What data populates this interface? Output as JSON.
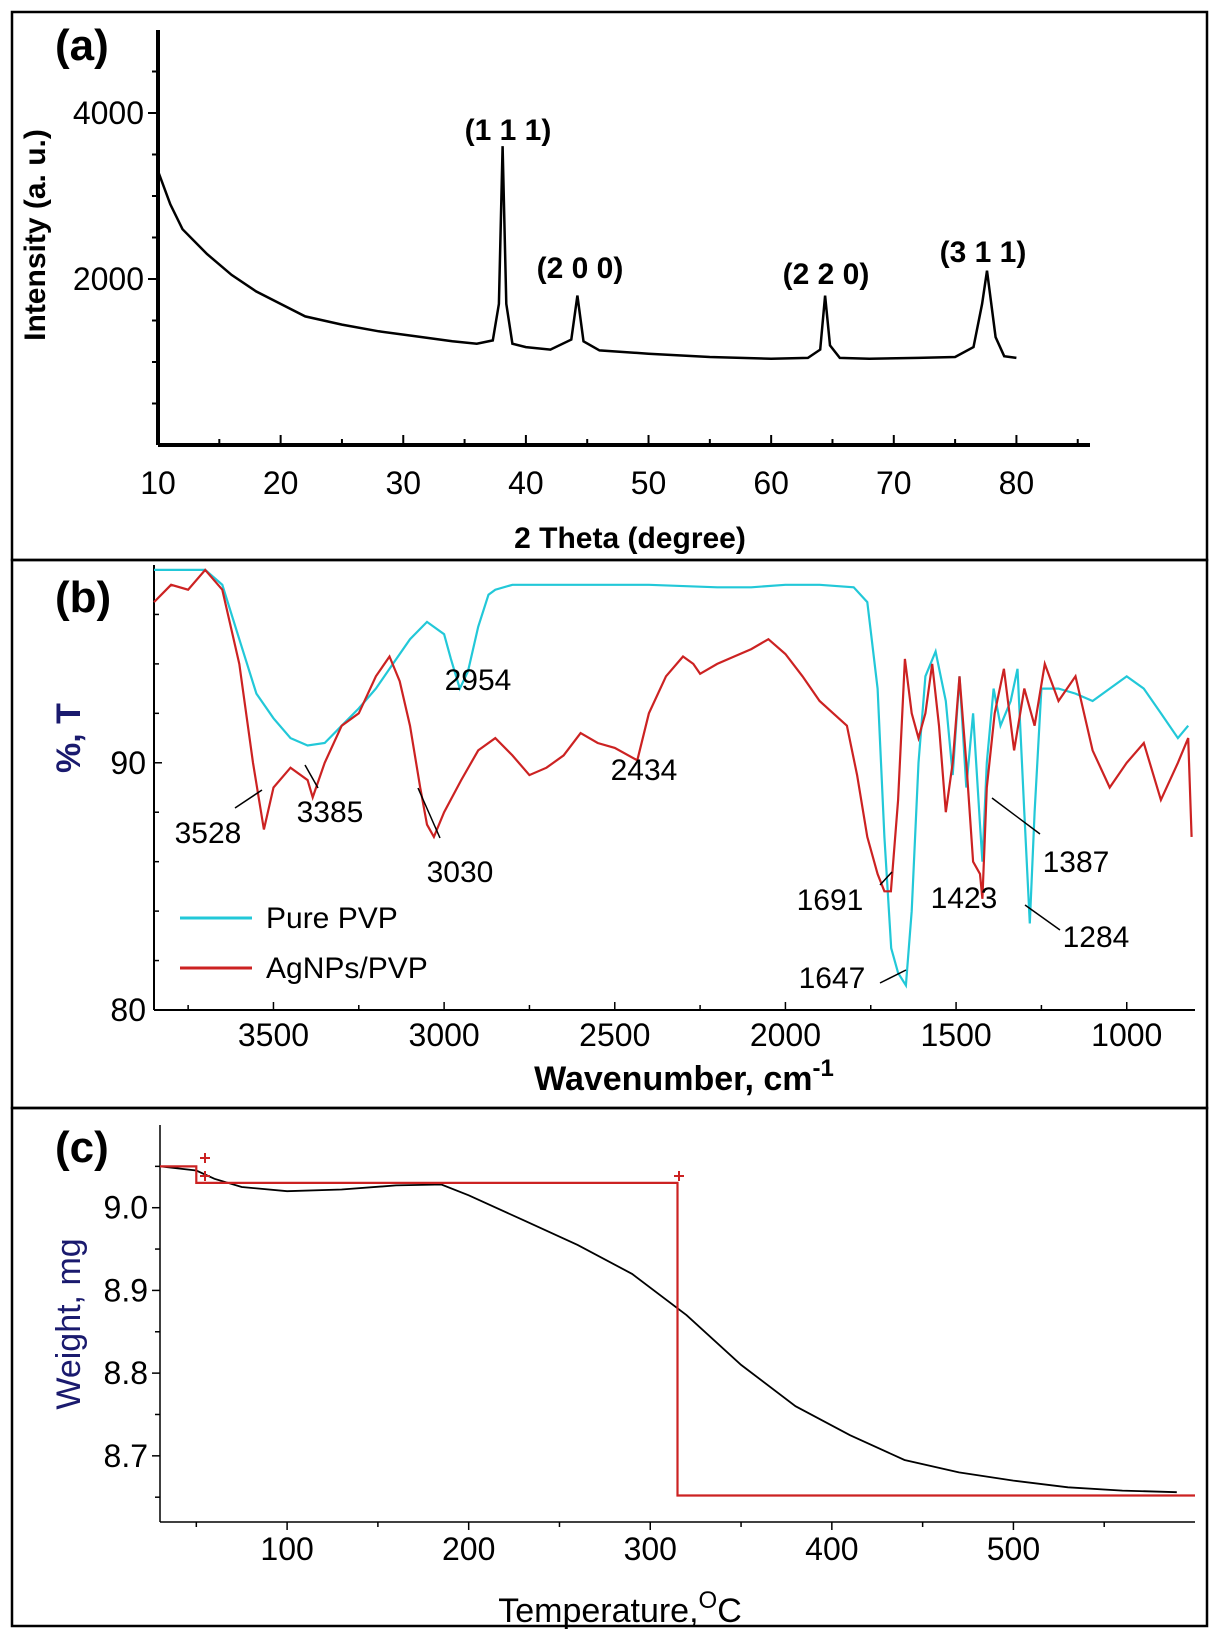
{
  "panels": {
    "a": {
      "label": "(a)"
    },
    "b": {
      "label": "(b)"
    },
    "c": {
      "label": "(c)"
    }
  },
  "chart_data": [
    {
      "panel": "a",
      "type": "line",
      "title": "",
      "xlabel": "2 Theta (degree)",
      "ylabel": "Intensity (a. u.)",
      "xlim": [
        10,
        86
      ],
      "ylim": [
        0,
        5000
      ],
      "x_ticks": [
        "10",
        "20",
        "30",
        "40",
        "50",
        "60",
        "70",
        "80"
      ],
      "y_ticks": [
        "2000",
        "4000"
      ],
      "series": [
        {
          "color": "#000000",
          "x": [
            10,
            11,
            12,
            14,
            16,
            18,
            20,
            22,
            25,
            28,
            31,
            34,
            36,
            37.3,
            37.8,
            38.1,
            38.4,
            38.9,
            40,
            42,
            43.7,
            44.2,
            44.7,
            46,
            50,
            55,
            60,
            63,
            64,
            64.4,
            64.8,
            65.6,
            68,
            72,
            75,
            76.5,
            77.2,
            77.6,
            78.3,
            79,
            80
          ],
          "values": [
            3300,
            2900,
            2600,
            2300,
            2050,
            1850,
            1700,
            1550,
            1450,
            1370,
            1310,
            1250,
            1220,
            1260,
            1700,
            3600,
            1700,
            1220,
            1180,
            1150,
            1270,
            1800,
            1250,
            1140,
            1100,
            1060,
            1040,
            1050,
            1150,
            1800,
            1200,
            1050,
            1040,
            1050,
            1060,
            1180,
            1700,
            2100,
            1300,
            1070,
            1050
          ]
        }
      ],
      "annotations": [
        "(1 1 1)",
        "(2 0 0)",
        "(2 2 0)",
        "(3 1 1)"
      ]
    },
    {
      "panel": "b",
      "type": "line",
      "title": "",
      "xlabel": "Wavenumber, cm",
      "xlabel_sup": "-1",
      "ylabel": "%, T",
      "xlim": [
        3850,
        800
      ],
      "ylim": [
        80,
        98
      ],
      "x_reversed": true,
      "x_ticks": [
        "3500",
        "3000",
        "2500",
        "2000",
        "1500",
        "1000"
      ],
      "y_ticks": [
        "80",
        "90"
      ],
      "series": [
        {
          "name": "Pure PVP",
          "color": "#22c8d8",
          "x": [
            3850,
            3700,
            3650,
            3600,
            3550,
            3500,
            3450,
            3400,
            3350,
            3300,
            3250,
            3200,
            3150,
            3100,
            3050,
            3000,
            2980,
            2954,
            2930,
            2900,
            2870,
            2850,
            2800,
            2600,
            2400,
            2200,
            2100,
            2000,
            1900,
            1800,
            1760,
            1730,
            1710,
            1690,
            1670,
            1647,
            1630,
            1610,
            1590,
            1560,
            1530,
            1510,
            1490,
            1470,
            1450,
            1430,
            1423,
            1410,
            1390,
            1370,
            1340,
            1320,
            1300,
            1284,
            1270,
            1250,
            1200,
            1150,
            1100,
            1050,
            1000,
            950,
            900,
            850,
            820
          ],
          "values": [
            97.8,
            97.8,
            97.2,
            95.0,
            92.8,
            91.8,
            91.0,
            90.7,
            90.8,
            91.5,
            92.2,
            93.0,
            94.0,
            95.0,
            95.7,
            95.2,
            94.2,
            93.0,
            93.7,
            95.5,
            96.8,
            97.0,
            97.2,
            97.2,
            97.2,
            97.1,
            97.1,
            97.2,
            97.2,
            97.1,
            96.5,
            93.0,
            87.0,
            82.5,
            81.5,
            81.0,
            84.0,
            90.0,
            93.5,
            94.5,
            92.5,
            89.5,
            93.5,
            89.0,
            92.0,
            87.5,
            86.0,
            90.0,
            93.0,
            91.5,
            92.5,
            93.8,
            88.0,
            83.5,
            88.0,
            93.0,
            93.0,
            92.8,
            92.5,
            93.0,
            93.5,
            93.0,
            92.0,
            91.0,
            91.5
          ]
        },
        {
          "name": "AgNPs/PVP",
          "color": "#cc2222",
          "x": [
            3850,
            3800,
            3750,
            3700,
            3650,
            3600,
            3560,
            3528,
            3500,
            3450,
            3400,
            3385,
            3350,
            3300,
            3250,
            3200,
            3160,
            3130,
            3100,
            3070,
            3050,
            3030,
            3000,
            2950,
            2900,
            2850,
            2800,
            2750,
            2700,
            2650,
            2600,
            2550,
            2500,
            2434,
            2400,
            2350,
            2300,
            2270,
            2250,
            2200,
            2150,
            2100,
            2050,
            2000,
            1950,
            1900,
            1860,
            1820,
            1790,
            1760,
            1730,
            1710,
            1691,
            1670,
            1650,
            1630,
            1610,
            1590,
            1570,
            1550,
            1530,
            1510,
            1490,
            1470,
            1450,
            1430,
            1423,
            1410,
            1387,
            1360,
            1330,
            1300,
            1270,
            1240,
            1200,
            1150,
            1100,
            1050,
            1000,
            950,
            900,
            850,
            820,
            810
          ],
          "values": [
            96.5,
            97.2,
            97.0,
            97.8,
            97.0,
            94.0,
            90.0,
            87.3,
            89.0,
            89.8,
            89.3,
            88.6,
            90.0,
            91.5,
            92.0,
            93.5,
            94.3,
            93.3,
            91.5,
            89.0,
            87.5,
            87.0,
            88.0,
            89.3,
            90.5,
            91.0,
            90.3,
            89.5,
            89.8,
            90.3,
            91.2,
            90.8,
            90.6,
            90.1,
            92.0,
            93.5,
            94.3,
            94.0,
            93.6,
            94.0,
            94.3,
            94.6,
            95.0,
            94.4,
            93.5,
            92.5,
            92.0,
            91.5,
            89.5,
            87.0,
            85.5,
            84.8,
            84.8,
            88.5,
            94.2,
            92.0,
            91.0,
            92.0,
            94.0,
            91.5,
            88.0,
            90.0,
            93.5,
            90.0,
            86.0,
            85.5,
            84.5,
            89.0,
            92.0,
            93.8,
            90.5,
            93.0,
            91.5,
            94.0,
            92.5,
            93.5,
            90.5,
            89.0,
            90.0,
            90.8,
            88.5,
            90.0,
            91.0,
            87.0
          ]
        }
      ],
      "annotations": [
        "3528",
        "3385",
        "3030",
        "2954",
        "2434",
        "1691",
        "1647",
        "1423",
        "1387",
        "1284"
      ],
      "legend": "bottom-left"
    },
    {
      "panel": "c",
      "type": "line",
      "title": "",
      "xlabel": "Temperature,",
      "xlabel_sup": "O",
      "xlabel_unit": "C",
      "ylabel": "Weight, mg",
      "xlim": [
        30,
        600
      ],
      "ylim": [
        8.62,
        9.1
      ],
      "x_ticks": [
        "100",
        "200",
        "300",
        "400",
        "500"
      ],
      "y_ticks": [
        "8.7",
        "8.8",
        "8.9",
        "9.0"
      ],
      "series": [
        {
          "color": "#000000",
          "x": [
            30,
            50,
            60,
            75,
            100,
            130,
            160,
            185,
            200,
            230,
            260,
            290,
            320,
            350,
            380,
            410,
            440,
            470,
            500,
            530,
            560,
            590
          ],
          "values": [
            9.05,
            9.045,
            9.035,
            9.025,
            9.02,
            9.022,
            9.027,
            9.028,
            9.015,
            8.985,
            8.955,
            8.92,
            8.87,
            8.81,
            8.76,
            8.725,
            8.695,
            8.68,
            8.67,
            8.662,
            8.658,
            8.656
          ]
        },
        {
          "color": "#cc2222",
          "x": [
            30,
            50,
            50,
            315,
            315,
            600
          ],
          "values": [
            9.05,
            9.05,
            9.03,
            9.03,
            8.652,
            8.652
          ]
        }
      ]
    }
  ]
}
